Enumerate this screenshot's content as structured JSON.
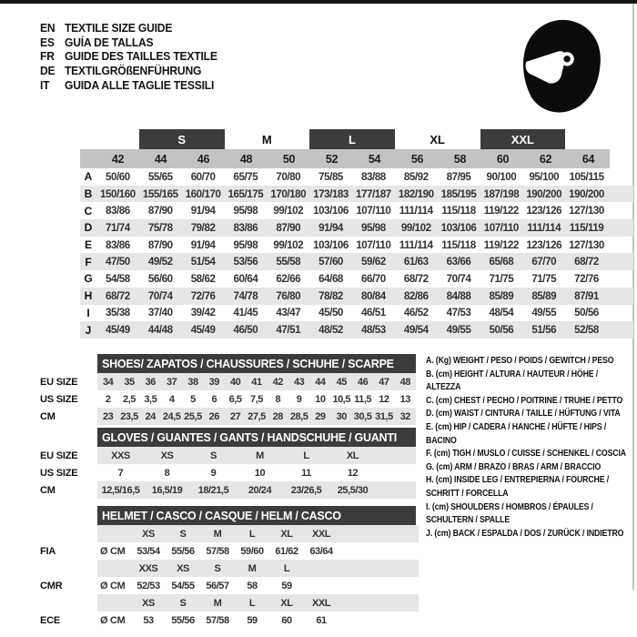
{
  "header": {
    "languages": [
      {
        "code": "EN",
        "title": "TEXTILE SIZE GUIDE"
      },
      {
        "code": "ES",
        "title": "GUÍA DE TALLAS"
      },
      {
        "code": "FR",
        "title": "GUIDE DES TAILLES TEXTILE"
      },
      {
        "code": "DE",
        "title": "TEXTILGRÖßENFÜHRUNG"
      },
      {
        "code": "IT",
        "title": "GUIDA ALLE TAGLIE TESSILI"
      }
    ],
    "icon": "racing-helmet"
  },
  "main_table": {
    "size_groups": [
      {
        "label": "S",
        "filled": true
      },
      {
        "label": "M",
        "filled": false
      },
      {
        "label": "L",
        "filled": true
      },
      {
        "label": "XL",
        "filled": false
      },
      {
        "label": "XXL",
        "filled": true
      }
    ],
    "columns": [
      "42",
      "44",
      "46",
      "48",
      "50",
      "52",
      "54",
      "56",
      "58",
      "60",
      "62",
      "64"
    ],
    "rows": [
      {
        "label": "A",
        "values": [
          "50/60",
          "55/65",
          "60/70",
          "65/75",
          "70/80",
          "75/85",
          "83/88",
          "85/92",
          "87/95",
          "90/100",
          "95/100",
          "105/115"
        ]
      },
      {
        "label": "B",
        "values": [
          "150/160",
          "155/165",
          "160/170",
          "165/175",
          "170/180",
          "173/183",
          "177/187",
          "182/190",
          "185/195",
          "187/198",
          "190/200",
          "190/200"
        ]
      },
      {
        "label": "C",
        "values": [
          "83/86",
          "87/90",
          "91/94",
          "95/98",
          "99/102",
          "103/106",
          "107/110",
          "111/114",
          "115/118",
          "119/122",
          "123/126",
          "127/130"
        ]
      },
      {
        "label": "D",
        "values": [
          "71/74",
          "75/78",
          "79/82",
          "83/86",
          "87/90",
          "91/94",
          "95/98",
          "99/102",
          "103/106",
          "107/110",
          "111/114",
          "115/119"
        ]
      },
      {
        "label": "E",
        "values": [
          "83/86",
          "87/90",
          "91/94",
          "95/98",
          "99/102",
          "103/106",
          "107/110",
          "111/114",
          "115/118",
          "119/122",
          "123/126",
          "127/130"
        ]
      },
      {
        "label": "F",
        "values": [
          "47/50",
          "49/52",
          "51/54",
          "53/56",
          "55/58",
          "57/60",
          "59/62",
          "61/63",
          "63/66",
          "65/68",
          "67/70",
          "68/72"
        ]
      },
      {
        "label": "G",
        "values": [
          "54/58",
          "56/60",
          "58/62",
          "60/64",
          "62/66",
          "64/68",
          "66/70",
          "68/72",
          "70/74",
          "71/75",
          "71/75",
          "72/76"
        ]
      },
      {
        "label": "H",
        "values": [
          "68/72",
          "70/74",
          "72/76",
          "74/78",
          "76/80",
          "78/82",
          "80/84",
          "82/86",
          "84/88",
          "85/89",
          "85/89",
          "87/91"
        ]
      },
      {
        "label": "I",
        "values": [
          "35/38",
          "37/40",
          "39/42",
          "41/45",
          "43/47",
          "45/50",
          "46/51",
          "46/52",
          "47/53",
          "48/54",
          "49/55",
          "50/56"
        ]
      },
      {
        "label": "J",
        "values": [
          "45/49",
          "44/48",
          "45/49",
          "46/50",
          "47/51",
          "48/52",
          "48/53",
          "49/54",
          "49/55",
          "50/56",
          "51/56",
          "52/58"
        ]
      }
    ]
  },
  "shoes_table": {
    "title": "SHOES/ ZAPATOS / CHAUSSURES / SCHUHE / SCARPE",
    "rows": [
      {
        "label": "EU SIZE",
        "shaded": true,
        "values": [
          "34",
          "35",
          "36",
          "37",
          "38",
          "39",
          "40",
          "41",
          "42",
          "43",
          "44",
          "45",
          "46",
          "47",
          "48"
        ]
      },
      {
        "label": "US SIZE",
        "shaded": false,
        "values": [
          "2",
          "2,5",
          "3,5",
          "4",
          "5",
          "6",
          "6,5",
          "7,5",
          "8",
          "9",
          "10",
          "10,5",
          "11,5",
          "12",
          "13"
        ]
      },
      {
        "label": "CM",
        "shaded": true,
        "values": [
          "23",
          "23,5",
          "24",
          "24,5",
          "25,5",
          "26",
          "27",
          "27,5",
          "28",
          "28,5",
          "29",
          "30",
          "30,5",
          "31,5",
          "32"
        ]
      }
    ]
  },
  "gloves_table": {
    "title": "GLOVES / GUANTES / GANTS / HANDSCHUHE / GUANTI",
    "rows": [
      {
        "label": "EU SIZE",
        "shaded": true,
        "values": [
          "XXS",
          "XS",
          "S",
          "M",
          "L",
          "XL"
        ]
      },
      {
        "label": "US SIZE",
        "shaded": false,
        "values": [
          "7",
          "8",
          "9",
          "10",
          "11",
          "12"
        ]
      },
      {
        "label": "CM",
        "shaded": true,
        "values": [
          "12,5/16,5",
          "16,5/19",
          "18/21,5",
          "20/24",
          "23/26,5",
          "25,5/30"
        ]
      }
    ]
  },
  "helmet_table": {
    "title": "HELMET / CASCO / CASQUE / HELM / CASCO",
    "sections": [
      {
        "label": "FIA",
        "unit": "Ø CM",
        "sizes": [
          "XS",
          "S",
          "M",
          "L",
          "XL",
          "XXL"
        ],
        "values": [
          "53/54",
          "55/56",
          "57/58",
          "59/60",
          "61/62",
          "63/64"
        ]
      },
      {
        "label": "CMR",
        "unit": "Ø CM",
        "sizes": [
          "XXS",
          "XS",
          "S",
          "M",
          "L"
        ],
        "values": [
          "52/53",
          "54/55",
          "56/57",
          "58",
          "59"
        ]
      },
      {
        "label": "ECE",
        "unit": "Ø CM",
        "sizes": [
          "XS",
          "S",
          "M",
          "L",
          "XL",
          "XXL"
        ],
        "values": [
          "53",
          "55/56",
          "57/58",
          "59",
          "60",
          "61"
        ]
      }
    ]
  },
  "legend": {
    "items": [
      "A. (Kg) WEIGHT / PESO / POIDS / GEWITCH / PESO",
      "B. (cm) HEIGHT / ALTURA / HAUTEUR / HÖHE / ALTEZZA",
      "C. (cm) CHEST / PECHO / POITRINE / TRUHE / PETTO",
      "D. (cm) WAIST / CINTURA / TAILLE / HÜFTUNG / VITA",
      "E. (cm) HIP / CADERA / HANCHE / HÜFTE / HIPS / BACINO",
      "F. (cm) TIGH / MUSLO / CUISSE / SCHENKEL / COSCIA",
      "G. (cm) ARM / BRAZO / BRAS / ARM / BRACCIO",
      "H. (cm) INSIDE LEG / ENTREPIERNA / FOURCHE / SCHRITT / FORCELLA",
      "I. (cm) SHOULDERS / HOMBROS / ÉPAULES / SCHULTERN / SPALLE",
      "J. (cm) BACK / ESPALDA / DOS / ZURÜCK / INDIETRO"
    ]
  },
  "colors": {
    "banner_dark": "#3c3c3c",
    "header_gray": "#c3c3c3",
    "row_gray": "#e6e6e6",
    "text": "#222222"
  }
}
